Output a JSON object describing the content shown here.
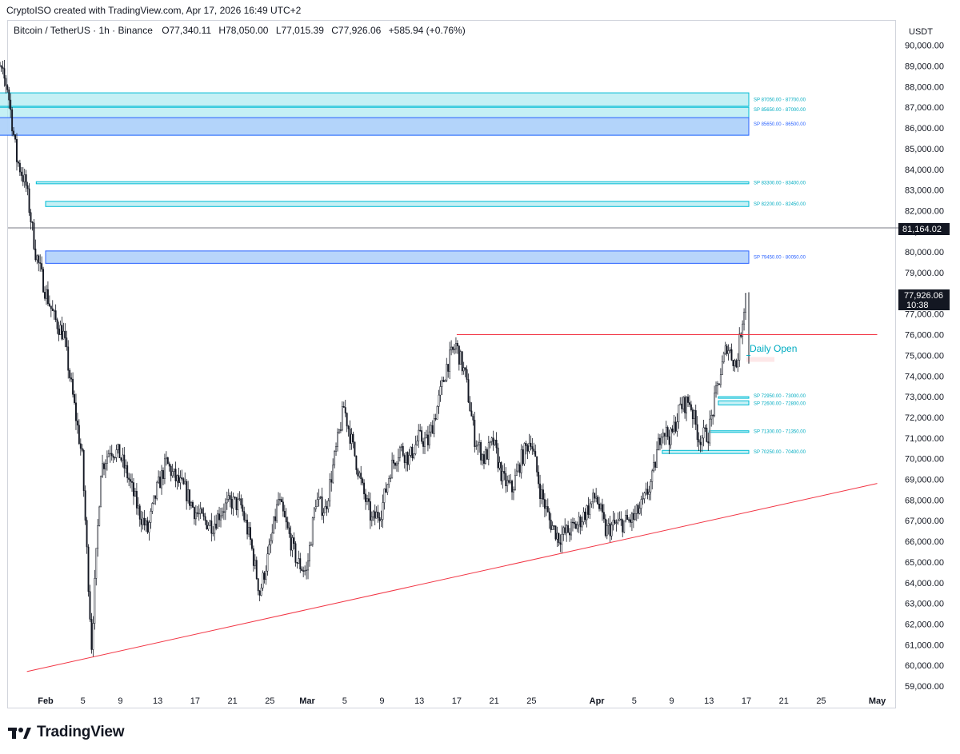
{
  "header": {
    "note": "CryptoISO created with TradingView.com, Apr 17, 2026 16:49 UTC+2"
  },
  "legend": {
    "symbol": "Bitcoin / TetherUS · 1h · Binance",
    "open_label": "O",
    "open": "77,340.11",
    "high_label": "H",
    "high": "78,050.00",
    "low_label": "L",
    "low": "77,015.39",
    "close_label": "C",
    "close": "77,926.06",
    "change": "+585.94 (+0.76%)"
  },
  "axis": {
    "currency": "USDT"
  },
  "price_tags": {
    "reference_price": "81,164.02",
    "last_price": "77,926.06",
    "countdown": "10:38"
  },
  "annotations": {
    "daily_open": "Daily Open"
  },
  "footer": {
    "brand": "TradingView"
  },
  "colors": {
    "candle": "#131722",
    "trendline": "#f23645",
    "zone_cyan_fill": "#b2ebf2",
    "zone_cyan_border": "#00bcd4",
    "zone_blue_fill": "#b0d0fb",
    "zone_blue_border": "#2962ff",
    "reference_line": "#787b86"
  },
  "chart_data": {
    "type": "candlestick",
    "symbol": "Bitcoin / TetherUS",
    "timeframe": "1h",
    "exchange": "Binance",
    "y_unit": "USDT",
    "ylim": [
      58600,
      92000
    ],
    "x_range": [
      "2026-01-26",
      "2026-05-03"
    ],
    "y_ticks": [
      "59,000.00",
      "60,000.00",
      "61,000.00",
      "62,000.00",
      "63,000.00",
      "64,000.00",
      "65,000.00",
      "66,000.00",
      "67,000.00",
      "68,000.00",
      "69,000.00",
      "70,000.00",
      "71,000.00",
      "72,000.00",
      "73,000.00",
      "74,000.00",
      "75,000.00",
      "76,000.00",
      "77,000.00",
      "78,000.00",
      "79,000.00",
      "80,000.00",
      "81,000.00",
      "82,000.00",
      "83,000.00",
      "84,000.00",
      "85,000.00",
      "86,000.00",
      "87,000.00",
      "88,000.00",
      "89,000.00",
      "90,000.00"
    ],
    "x_ticks": [
      {
        "label": "Feb",
        "date": "2026-02-01",
        "bold": true
      },
      {
        "label": "5",
        "date": "2026-02-05"
      },
      {
        "label": "9",
        "date": "2026-02-09"
      },
      {
        "label": "13",
        "date": "2026-02-13"
      },
      {
        "label": "17",
        "date": "2026-02-17"
      },
      {
        "label": "21",
        "date": "2026-02-21"
      },
      {
        "label": "25",
        "date": "2026-02-25"
      },
      {
        "label": "Mar",
        "date": "2026-03-01",
        "bold": true
      },
      {
        "label": "5",
        "date": "2026-03-05"
      },
      {
        "label": "9",
        "date": "2026-03-09"
      },
      {
        "label": "13",
        "date": "2026-03-13"
      },
      {
        "label": "17",
        "date": "2026-03-17"
      },
      {
        "label": "21",
        "date": "2026-03-21"
      },
      {
        "label": "25",
        "date": "2026-03-25"
      },
      {
        "label": "Apr",
        "date": "2026-04-01",
        "bold": true
      },
      {
        "label": "5",
        "date": "2026-04-05"
      },
      {
        "label": "9",
        "date": "2026-04-09"
      },
      {
        "label": "13",
        "date": "2026-04-13"
      },
      {
        "label": "17",
        "date": "2026-04-17"
      },
      {
        "label": "21",
        "date": "2026-04-21"
      },
      {
        "label": "25",
        "date": "2026-04-25"
      },
      {
        "label": "May",
        "date": "2026-05-01",
        "bold": true
      }
    ],
    "price_path": [
      [
        "2026-01-26",
        90500
      ],
      [
        "2026-01-27",
        89000
      ],
      [
        "2026-01-28",
        88000
      ],
      [
        "2026-01-29",
        84500
      ],
      [
        "2026-01-30",
        83200
      ],
      [
        "2026-01-31",
        80000
      ],
      [
        "2026-02-01",
        78200
      ],
      [
        "2026-02-02",
        76800
      ],
      [
        "2026-02-03",
        76000
      ],
      [
        "2026-02-04",
        73000
      ],
      [
        "2026-02-05",
        70000
      ],
      [
        "2026-02-06",
        61000
      ],
      [
        "2026-02-07",
        69500
      ],
      [
        "2026-02-08",
        70500
      ],
      [
        "2026-02-09",
        70200
      ],
      [
        "2026-02-10",
        69000
      ],
      [
        "2026-02-11",
        67500
      ],
      [
        "2026-02-12",
        66500
      ],
      [
        "2026-02-13",
        68500
      ],
      [
        "2026-02-14",
        69800
      ],
      [
        "2026-02-15",
        69000
      ],
      [
        "2026-02-16",
        68500
      ],
      [
        "2026-02-17",
        67500
      ],
      [
        "2026-02-18",
        67000
      ],
      [
        "2026-02-19",
        66800
      ],
      [
        "2026-02-20",
        67600
      ],
      [
        "2026-02-21",
        67900
      ],
      [
        "2026-02-22",
        67700
      ],
      [
        "2026-02-23",
        66000
      ],
      [
        "2026-02-24",
        63500
      ],
      [
        "2026-02-25",
        65500
      ],
      [
        "2026-02-26",
        68000
      ],
      [
        "2026-02-27",
        66500
      ],
      [
        "2026-02-28",
        65000
      ],
      [
        "2026-03-01",
        64500
      ],
      [
        "2026-03-02",
        68000
      ],
      [
        "2026-03-03",
        67500
      ],
      [
        "2026-03-04",
        70000
      ],
      [
        "2026-03-05",
        72500
      ],
      [
        "2026-03-06",
        70500
      ],
      [
        "2026-03-07",
        68500
      ],
      [
        "2026-03-08",
        67000
      ],
      [
        "2026-03-09",
        67500
      ],
      [
        "2026-03-10",
        69500
      ],
      [
        "2026-03-11",
        70500
      ],
      [
        "2026-03-12",
        70000
      ],
      [
        "2026-03-13",
        71000
      ],
      [
        "2026-03-14",
        70800
      ],
      [
        "2026-03-15",
        72500
      ],
      [
        "2026-03-16",
        74500
      ],
      [
        "2026-03-17",
        75500
      ],
      [
        "2026-03-18",
        74000
      ],
      [
        "2026-03-19",
        71000
      ],
      [
        "2026-03-20",
        70000
      ],
      [
        "2026-03-21",
        70800
      ],
      [
        "2026-03-22",
        69000
      ],
      [
        "2026-03-23",
        68500
      ],
      [
        "2026-03-24",
        70000
      ],
      [
        "2026-03-25",
        71000
      ],
      [
        "2026-03-26",
        68500
      ],
      [
        "2026-03-27",
        67000
      ],
      [
        "2026-03-28",
        66200
      ],
      [
        "2026-03-29",
        66500
      ],
      [
        "2026-03-30",
        66800
      ],
      [
        "2026-03-31",
        67500
      ],
      [
        "2026-04-01",
        68200
      ],
      [
        "2026-04-02",
        66500
      ],
      [
        "2026-04-03",
        66800
      ],
      [
        "2026-04-04",
        66900
      ],
      [
        "2026-04-05",
        67100
      ],
      [
        "2026-04-06",
        67800
      ],
      [
        "2026-04-07",
        69000
      ],
      [
        "2026-04-08",
        71500
      ],
      [
        "2026-04-09",
        71000
      ],
      [
        "2026-04-10",
        72500
      ],
      [
        "2026-04-11",
        72800
      ],
      [
        "2026-04-12",
        71000
      ],
      [
        "2026-04-13",
        71200
      ],
      [
        "2026-04-14",
        73500
      ],
      [
        "2026-04-15",
        75500
      ],
      [
        "2026-04-16",
        74500
      ],
      [
        "2026-04-17",
        77926
      ]
    ],
    "price_lines": [
      {
        "name": "reference",
        "price": 81164.02,
        "from": "2026-01-26",
        "to": "2026-05-03",
        "color": "#787b86"
      }
    ],
    "trendlines": [
      {
        "from": [
          "2026-01-30",
          59700
        ],
        "to": [
          "2026-05-01",
          68800
        ],
        "color": "#f23645"
      },
      {
        "from": [
          "2026-03-17",
          76000
        ],
        "to": [
          "2026-05-01",
          76000
        ],
        "color": "#f23645"
      }
    ],
    "zones": [
      {
        "label": "SP 87050.00 - 87700.00",
        "low": 87050,
        "high": 87700,
        "from": "2026-01-27",
        "to": "2026-04-17",
        "style": "cyan"
      },
      {
        "label": "SP 85650.00 - 87000.00",
        "low": 85650,
        "high": 87000,
        "from": "2026-01-27",
        "to": "2026-04-17",
        "style": "cyan"
      },
      {
        "label": "SP 85650.00 - 86500.00",
        "low": 85650,
        "high": 86500,
        "from": "2026-01-27",
        "to": "2026-04-17",
        "style": "blue"
      },
      {
        "label": "SP 83300.00 - 83400.00",
        "low": 83300,
        "high": 83400,
        "from": "2026-01-31",
        "to": "2026-04-17",
        "style": "cyan"
      },
      {
        "label": "SP 82200.00 - 82450.00",
        "low": 82200,
        "high": 82450,
        "from": "2026-02-01",
        "to": "2026-04-17",
        "style": "cyan"
      },
      {
        "label": "SP 79450.00 - 80050.00",
        "low": 79450,
        "high": 80050,
        "from": "2026-02-01",
        "to": "2026-04-17",
        "style": "blue"
      },
      {
        "label": "SP 72950.00 - 73000.00",
        "low": 72950,
        "high": 73000,
        "from": "2026-04-14",
        "to": "2026-04-17",
        "style": "cyan"
      },
      {
        "label": "SP 72600.00 - 72800.00",
        "low": 72600,
        "high": 72800,
        "from": "2026-04-14",
        "to": "2026-04-17",
        "style": "cyan"
      },
      {
        "label": "SP 71300.00 - 71350.00",
        "low": 71300,
        "high": 71350,
        "from": "2026-04-13",
        "to": "2026-04-17",
        "style": "cyan"
      },
      {
        "label": "SP 70250.00 - 70400.00",
        "low": 70250,
        "high": 70400,
        "from": "2026-04-08",
        "to": "2026-04-17",
        "style": "cyan"
      }
    ],
    "daily_open": {
      "price": 74800,
      "from": "2026-04-17",
      "to": "2026-04-20"
    }
  }
}
